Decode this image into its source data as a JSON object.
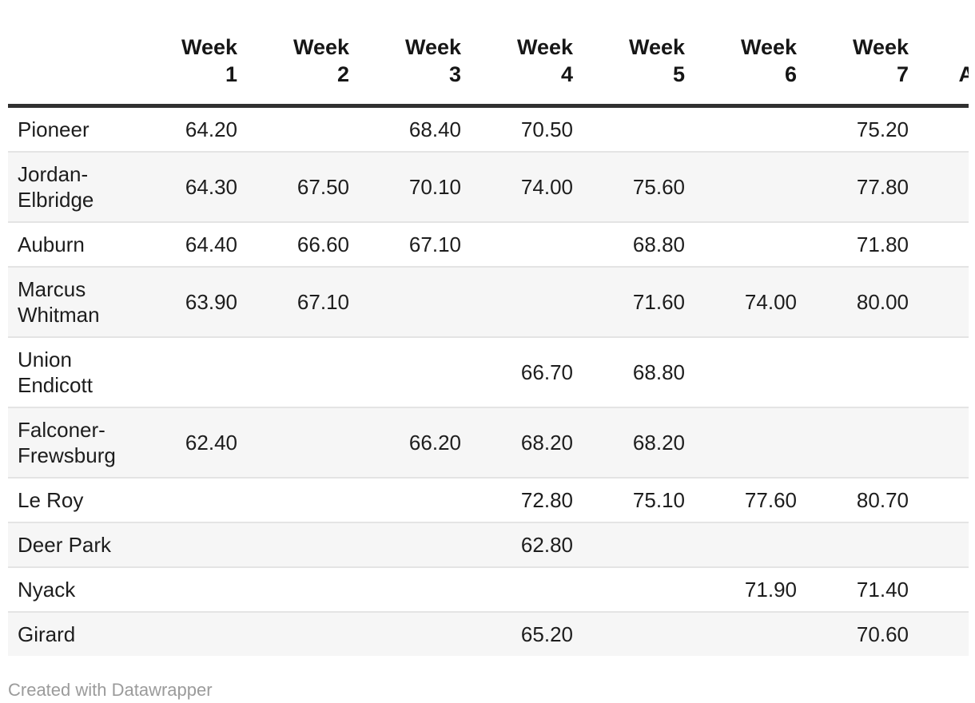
{
  "table": {
    "header_columns": [
      {
        "line1": "",
        "line2": ""
      },
      {
        "line1": "Week",
        "line2": "1"
      },
      {
        "line1": "Week",
        "line2": "2"
      },
      {
        "line1": "Week",
        "line2": "3"
      },
      {
        "line1": "Week",
        "line2": "4"
      },
      {
        "line1": "Week",
        "line2": "5"
      },
      {
        "line1": "Week",
        "line2": "6"
      },
      {
        "line1": "Week",
        "line2": "7"
      },
      {
        "line1": "Average",
        "line2": ""
      }
    ],
    "rows": [
      {
        "name": "Pioneer",
        "values": [
          "64.20",
          "",
          "68.40",
          "70.50",
          "",
          "",
          "75.20"
        ]
      },
      {
        "name": "Jordan-Elbridge",
        "values": [
          "64.30",
          "67.50",
          "70.10",
          "74.00",
          "75.60",
          "",
          "77.80"
        ]
      },
      {
        "name": "Auburn",
        "values": [
          "64.40",
          "66.60",
          "67.10",
          "",
          "68.80",
          "",
          "71.80"
        ]
      },
      {
        "name": "Marcus Whitman",
        "values": [
          "63.90",
          "67.10",
          "",
          "",
          "71.60",
          "74.00",
          "80.00"
        ]
      },
      {
        "name": "Union Endicott",
        "values": [
          "",
          "",
          "",
          "66.70",
          "68.80",
          "",
          ""
        ]
      },
      {
        "name": "Falconer-Frewsburg",
        "values": [
          "62.40",
          "",
          "66.20",
          "68.20",
          "68.20",
          "",
          ""
        ]
      },
      {
        "name": "Le Roy",
        "values": [
          "",
          "",
          "",
          "72.80",
          "75.10",
          "77.60",
          "80.70"
        ]
      },
      {
        "name": "Deer Park",
        "values": [
          "",
          "",
          "",
          "62.80",
          "",
          "",
          ""
        ]
      },
      {
        "name": "Nyack",
        "values": [
          "",
          "",
          "",
          "",
          "",
          "71.90",
          "71.40"
        ]
      },
      {
        "name": "Girard",
        "values": [
          "",
          "",
          "",
          "65.20",
          "",
          "",
          "70.60"
        ]
      }
    ]
  },
  "chart_data": {
    "type": "table",
    "title": "",
    "categories": [
      "Week 1",
      "Week 2",
      "Week 3",
      "Week 4",
      "Week 5",
      "Week 6",
      "Week 7"
    ],
    "series": [
      {
        "name": "Pioneer",
        "values": [
          64.2,
          null,
          68.4,
          70.5,
          null,
          null,
          75.2
        ]
      },
      {
        "name": "Jordan-Elbridge",
        "values": [
          64.3,
          67.5,
          70.1,
          74.0,
          75.6,
          null,
          77.8
        ]
      },
      {
        "name": "Auburn",
        "values": [
          64.4,
          66.6,
          67.1,
          null,
          68.8,
          null,
          71.8
        ]
      },
      {
        "name": "Marcus Whitman",
        "values": [
          63.9,
          67.1,
          null,
          null,
          71.6,
          74.0,
          80.0
        ]
      },
      {
        "name": "Union Endicott",
        "values": [
          null,
          null,
          null,
          66.7,
          68.8,
          null,
          null
        ]
      },
      {
        "name": "Falconer-Frewsburg",
        "values": [
          62.4,
          null,
          66.2,
          68.2,
          68.2,
          null,
          null
        ]
      },
      {
        "name": "Le Roy",
        "values": [
          null,
          null,
          null,
          72.8,
          75.1,
          77.6,
          80.7
        ]
      },
      {
        "name": "Deer Park",
        "values": [
          null,
          null,
          null,
          62.8,
          null,
          null,
          null
        ]
      },
      {
        "name": "Nyack",
        "values": [
          null,
          null,
          null,
          null,
          null,
          71.9,
          71.4
        ]
      },
      {
        "name": "Girard",
        "values": [
          null,
          null,
          null,
          65.2,
          null,
          null,
          70.6
        ]
      }
    ],
    "layout_hints": {
      "zebra_striping": true,
      "numeric_columns_right_aligned": true,
      "last_column_clipped": "Average"
    }
  },
  "footer": {
    "credit": "Created with Datawrapper"
  },
  "colors": {
    "text": "#1d1d1d",
    "header_text": "#161616",
    "header_rule": "#303030",
    "row_separator": "#e4e4e4",
    "zebra_row_bg": "#f6f6f6",
    "footer_text": "#9b9b9b",
    "background": "#ffffff"
  }
}
